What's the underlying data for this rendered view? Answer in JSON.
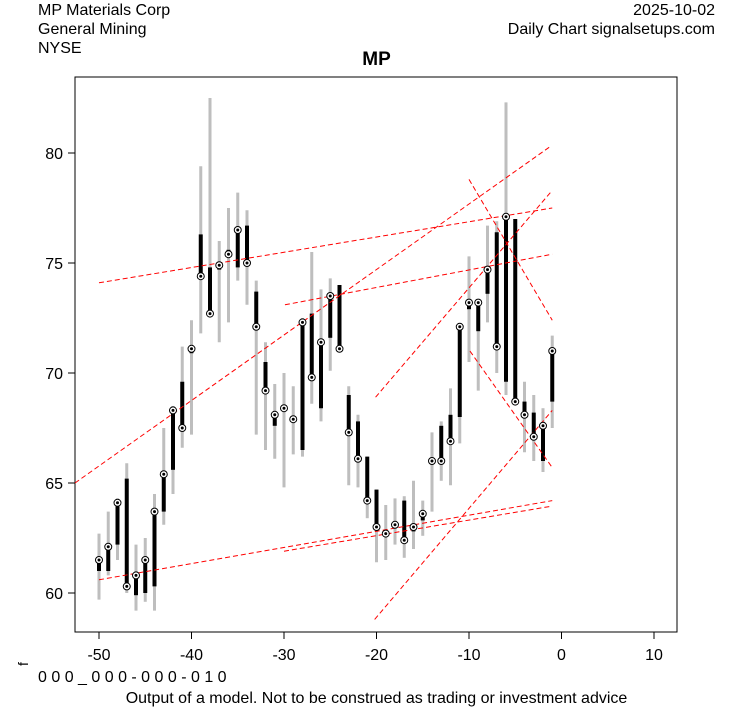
{
  "header": {
    "company": "MP Materials Corp",
    "sector": "General Mining",
    "exchange": "NYSE",
    "date": "2025-10-02",
    "source": "Daily Chart signalsetups.com"
  },
  "footer": {
    "code": "0 0 0 _ 0 0 0 - 0 0 0 - 0 1 0",
    "side_label": "f",
    "disclaimer": "Output of a model. Not to be construed as trading or investment advice"
  },
  "colors": {
    "wick": "#bebebe",
    "body": "#000000",
    "trend": "#ff0000"
  },
  "chart_data": {
    "type": "candlestick",
    "title": "MP",
    "xlabel": "",
    "ylabel": "",
    "xlim": [
      -52.6,
      12.5
    ],
    "ylim": [
      58.3,
      83.5
    ],
    "xticks": [
      -50,
      -40,
      -30,
      -20,
      -10,
      0,
      10
    ],
    "yticks": [
      60,
      65,
      70,
      75,
      80
    ],
    "x": [
      -50,
      -49,
      -48,
      -47,
      -46,
      -45,
      -44,
      -43,
      -42,
      -41,
      -40,
      -39,
      -38,
      -37,
      -36,
      -35,
      -34,
      -33,
      -32,
      -31,
      -30,
      -29,
      -28,
      -27,
      -26,
      -25,
      -24,
      -23,
      -22,
      -21,
      -20,
      -19,
      -18,
      -17,
      -16,
      -15,
      -14,
      -13,
      -12,
      -11,
      -10,
      -9,
      -8,
      -7,
      -6,
      -5,
      -4,
      -3,
      -2,
      -1
    ],
    "open": [
      61.0,
      61.0,
      62.2,
      65.2,
      59.9,
      60.0,
      60.3,
      63.7,
      65.6,
      69.6,
      70.9,
      76.3,
      74.8,
      74.7,
      75.6,
      74.8,
      76.7,
      73.7,
      70.5,
      67.6,
      68.5,
      67.9,
      66.5,
      72.7,
      68.4,
      71.6,
      74.0,
      69.0,
      67.8,
      66.2,
      64.7,
      62.7,
      63.2,
      64.2,
      62.8,
      63.3,
      66.0,
      67.6,
      68.1,
      68.0,
      72.9,
      71.9,
      73.6,
      76.4,
      69.6,
      77.0,
      68.7,
      68.2,
      66.0,
      68.7
    ],
    "close": [
      61.5,
      62.1,
      64.1,
      60.3,
      60.8,
      61.5,
      63.7,
      65.4,
      68.3,
      67.5,
      71.1,
      74.4,
      72.7,
      74.9,
      75.4,
      76.5,
      75.0,
      72.1,
      69.2,
      68.1,
      68.4,
      67.9,
      72.3,
      69.8,
      71.4,
      73.5,
      71.1,
      67.3,
      66.1,
      64.2,
      63.0,
      62.7,
      63.1,
      62.4,
      63.0,
      63.6,
      66.0,
      66.0,
      66.9,
      72.1,
      73.2,
      73.2,
      74.7,
      71.2,
      77.1,
      68.7,
      68.1,
      67.1,
      67.6,
      71.0
    ],
    "high": [
      62.7,
      63.7,
      64.3,
      65.9,
      62.2,
      62.5,
      64.5,
      67.5,
      68.5,
      71.2,
      72.4,
      79.4,
      82.5,
      76.0,
      77.5,
      78.2,
      77.4,
      74.2,
      71.4,
      69.5,
      70.0,
      69.4,
      72.5,
      75.5,
      73.8,
      74.3,
      74.0,
      69.4,
      68.1,
      66.2,
      64.7,
      64.0,
      64.3,
      64.4,
      65.1,
      64.2,
      67.3,
      67.8,
      69.3,
      72.1,
      75.3,
      73.2,
      76.7,
      76.9,
      82.3,
      77.0,
      69.6,
      69.0,
      68.4,
      71.7
    ],
    "low": [
      59.7,
      60.8,
      61.5,
      60.0,
      59.2,
      59.6,
      59.2,
      63.1,
      64.5,
      66.6,
      67.2,
      71.8,
      72.7,
      71.4,
      72.3,
      74.2,
      73.1,
      67.2,
      66.5,
      66.1,
      64.8,
      66.3,
      66.2,
      68.6,
      67.8,
      70.1,
      71.1,
      64.9,
      64.8,
      63.4,
      61.4,
      61.5,
      62.2,
      61.6,
      62.0,
      62.6,
      63.7,
      65.1,
      64.9,
      66.8,
      70.5,
      69.2,
      72.3,
      70.0,
      69.0,
      68.7,
      66.4,
      66.0,
      65.5,
      67.5
    ],
    "trend_lines": [
      {
        "from": [
          -52.6,
          65.0
        ],
        "to": [
          -1.2,
          80.3
        ]
      },
      {
        "from": [
          -50,
          74.1
        ],
        "to": [
          -1,
          77.5
        ]
      },
      {
        "from": [
          -29.9,
          73.1
        ],
        "to": [
          -1,
          75.4
        ]
      },
      {
        "from": [
          -50,
          60.6
        ],
        "to": [
          -1,
          64.2
        ]
      },
      {
        "from": [
          -30,
          61.9
        ],
        "to": [
          -1,
          63.95
        ]
      },
      {
        "from": [
          -20.2,
          58.8
        ],
        "to": [
          -1,
          68.3
        ]
      },
      {
        "from": [
          -20.1,
          68.9
        ],
        "to": [
          -1,
          78.3
        ]
      },
      {
        "from": [
          -10,
          78.8
        ],
        "to": [
          -1,
          72.4
        ]
      },
      {
        "from": [
          -9.9,
          71.0
        ],
        "to": [
          -1,
          65.7
        ]
      }
    ]
  }
}
